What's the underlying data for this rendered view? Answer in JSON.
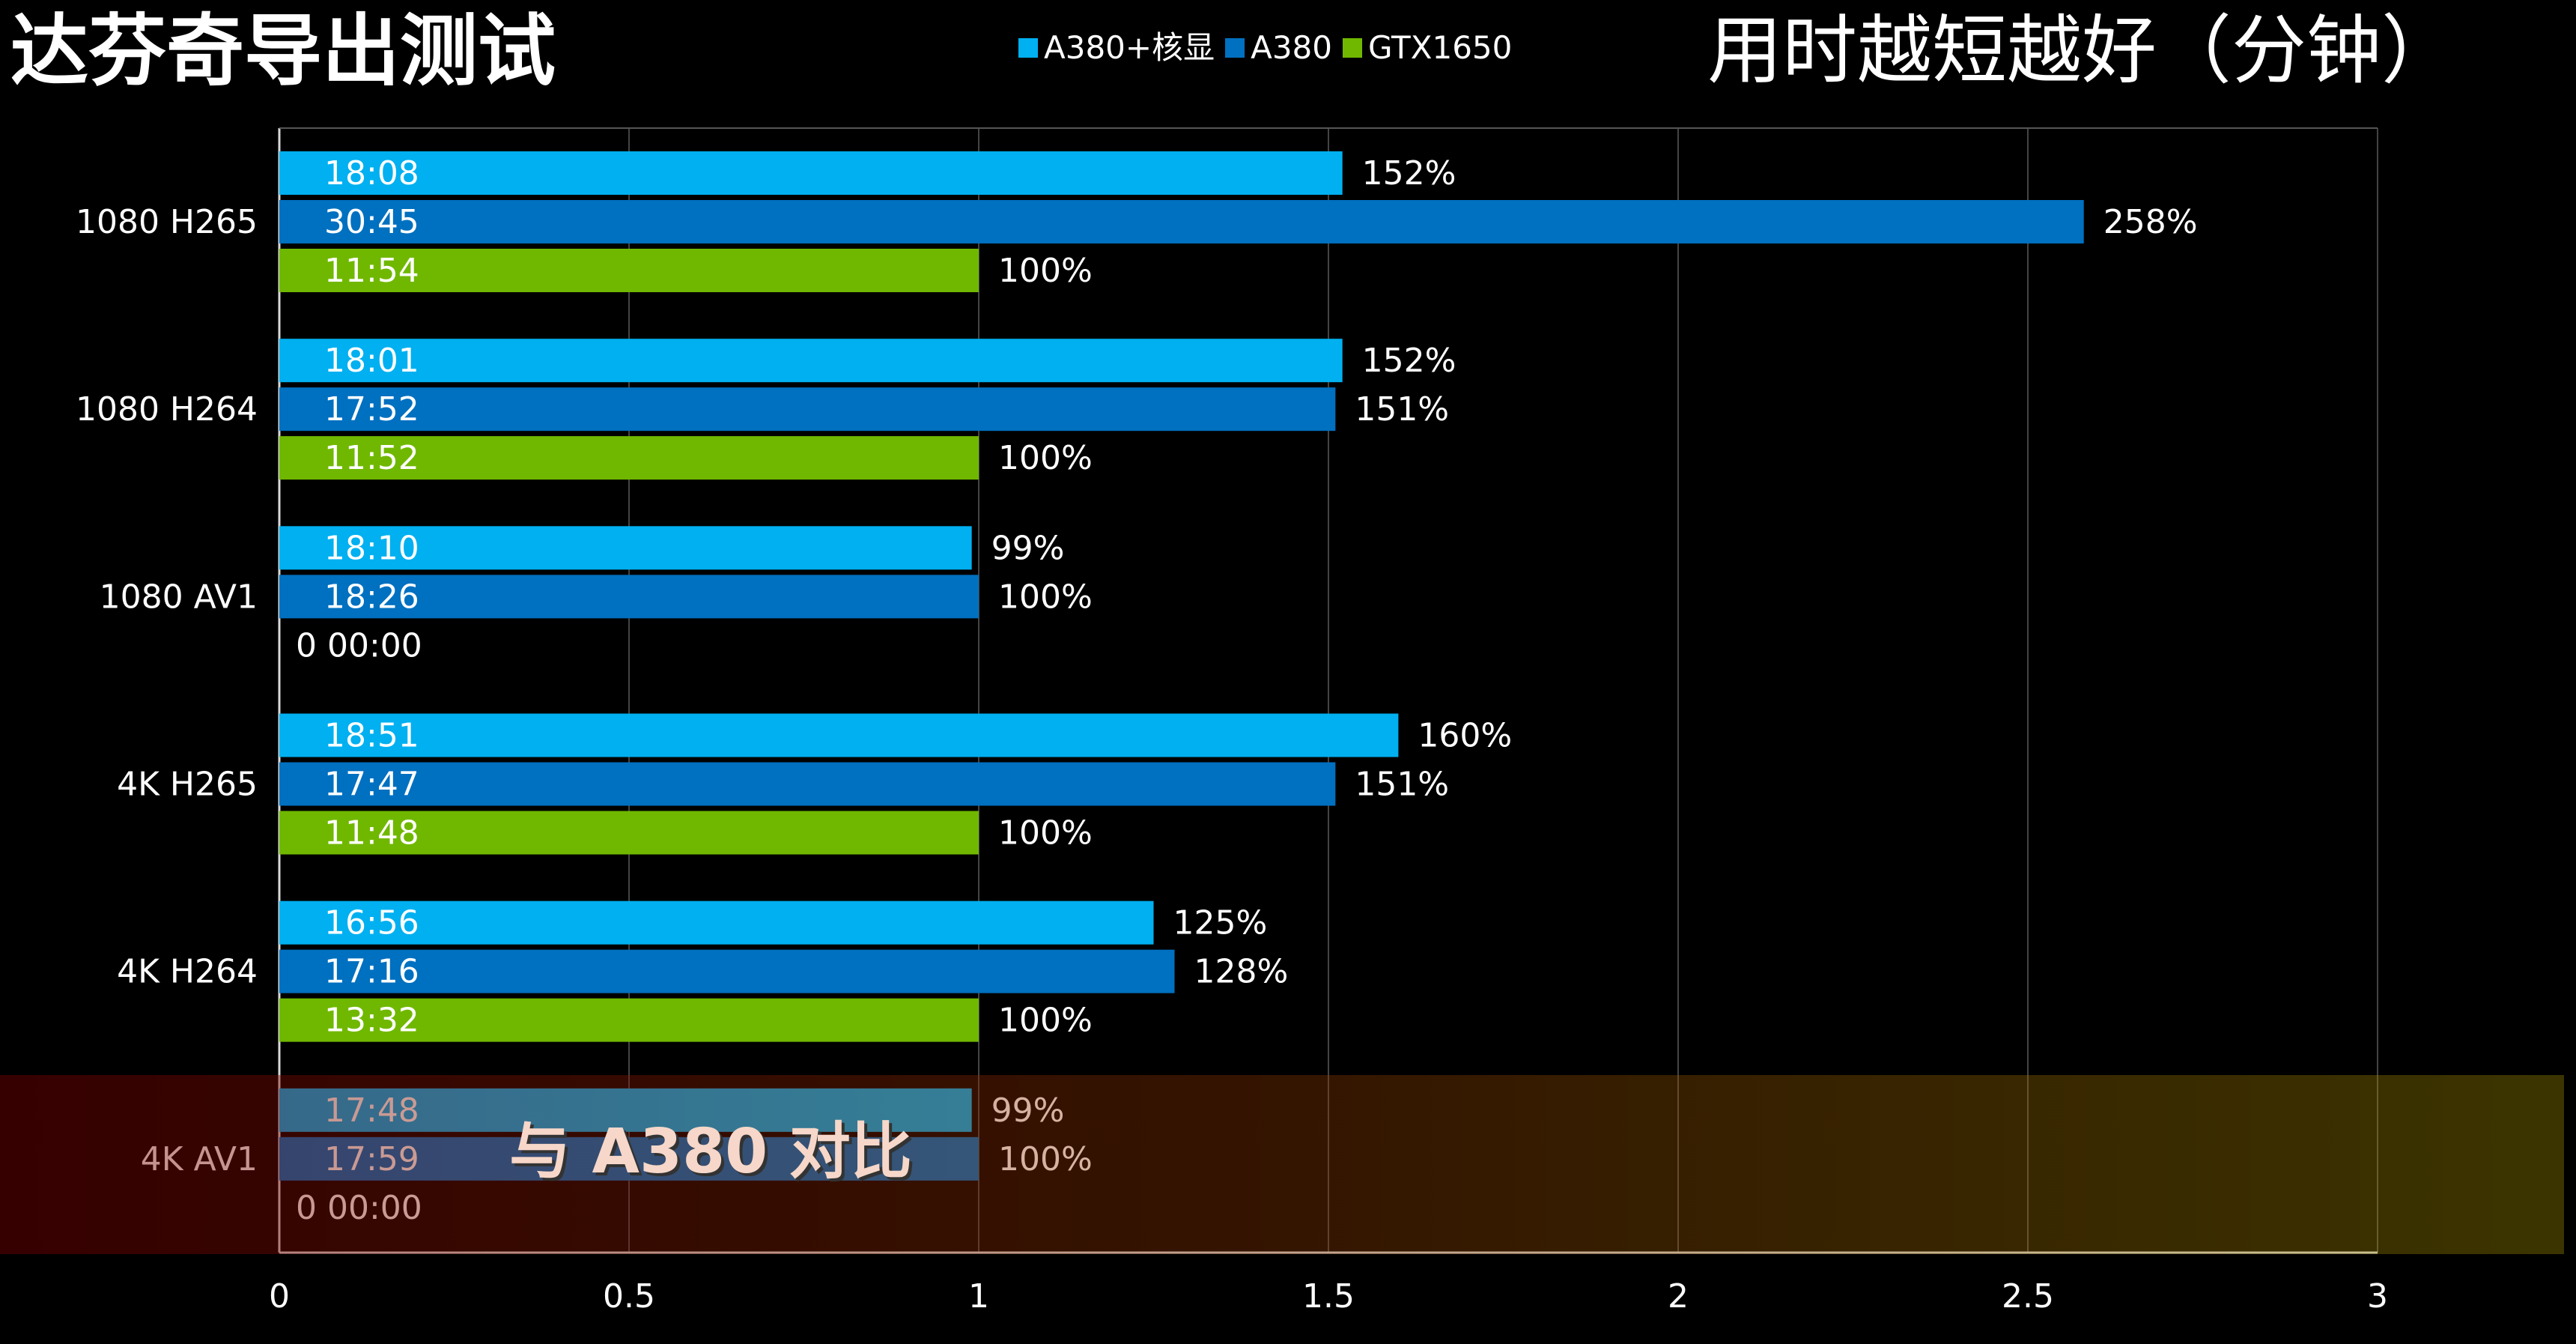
{
  "title": "达芬奇导出测试",
  "subtitle": "用时越短越好（分钟）",
  "overlay_caption": "与 A380 对比",
  "chart_data": {
    "type": "bar",
    "orientation": "horizontal",
    "categories": [
      "1080 H265",
      "1080 H264",
      "1080 AV1",
      "4K H265",
      "4K H264",
      "4K AV1"
    ],
    "series": [
      {
        "name": "A380+核显",
        "color": "#00b0f0",
        "values": [
          1.52,
          1.52,
          0.99,
          1.6,
          1.25,
          0.99
        ],
        "time_labels": [
          "18:08",
          "18:01",
          "18:10",
          "18:51",
          "16:56",
          "17:48"
        ],
        "pct_labels": [
          "152%",
          "152%",
          "99%",
          "160%",
          "125%",
          "99%"
        ]
      },
      {
        "name": "A380",
        "color": "#0070c0",
        "values": [
          2.58,
          1.51,
          1.0,
          1.51,
          1.28,
          1.0
        ],
        "time_labels": [
          "30:45",
          "17:52",
          "18:26",
          "17:47",
          "17:16",
          "17:59"
        ],
        "pct_labels": [
          "258%",
          "151%",
          "100%",
          "151%",
          "128%",
          "100%"
        ]
      },
      {
        "name": "GTX1650",
        "color": "#70b800",
        "values": [
          1.0,
          1.0,
          0,
          1.0,
          1.0,
          0
        ],
        "time_labels": [
          "11:54",
          "11:52",
          "0 00:00",
          "11:48",
          "13:32",
          "0 00:00"
        ],
        "pct_labels": [
          "100%",
          "100%",
          "",
          "100%",
          "100%",
          ""
        ]
      }
    ],
    "xlim": [
      0,
      3
    ],
    "xticks": [
      "0",
      "0.5",
      "1",
      "1.5",
      "2",
      "2.5",
      "3"
    ],
    "grid": true,
    "legend_position": "top"
  }
}
